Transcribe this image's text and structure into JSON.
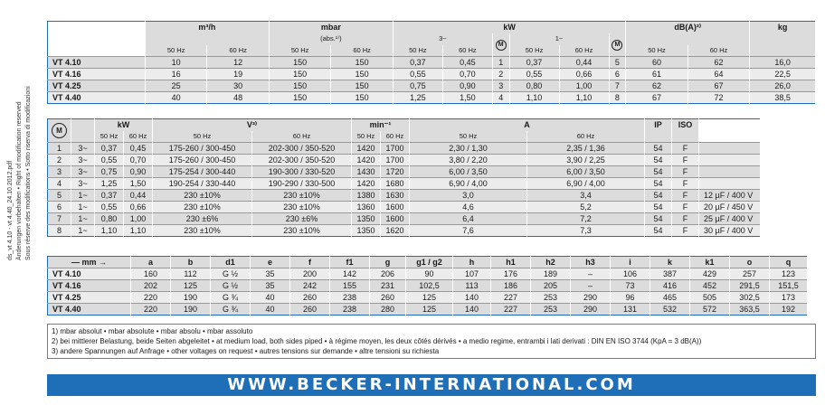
{
  "side_text": {
    "line1": "ds_vt 4.10 - vt 4.40_24.10.2012.pdf",
    "line2": "Änderungen vorbehalten • Right of modification reserved",
    "line3": "Sous réserve des modifications • Sotto riserva di modificazioni"
  },
  "t1": {
    "headers": [
      "m³/h",
      "mbar",
      "(abs.¹⁾)",
      "kW",
      "3~",
      "1~",
      "M",
      "dB(A)²⁾",
      "kg"
    ],
    "freq": [
      "50 Hz",
      "60 Hz"
    ],
    "rows": [
      [
        "VT 4.10",
        "10",
        "12",
        "150",
        "150",
        "0,37",
        "0,45",
        "1",
        "0,37",
        "0,44",
        "5",
        "60",
        "62",
        "16,0"
      ],
      [
        "VT 4.16",
        "16",
        "19",
        "150",
        "150",
        "0,55",
        "0,70",
        "2",
        "0,55",
        "0,66",
        "6",
        "61",
        "64",
        "22,5"
      ],
      [
        "VT 4.25",
        "25",
        "30",
        "150",
        "150",
        "0,75",
        "0,90",
        "3",
        "0,80",
        "1,00",
        "7",
        "62",
        "67",
        "26,0"
      ],
      [
        "VT 4.40",
        "40",
        "48",
        "150",
        "150",
        "1,25",
        "1,50",
        "4",
        "1,10",
        "1,10",
        "8",
        "67",
        "72",
        "38,5"
      ]
    ]
  },
  "t2": {
    "headers": [
      "M",
      "kW",
      "V³⁾",
      "min⁻¹",
      "A",
      "IP",
      "ISO"
    ],
    "freq": [
      "50 Hz",
      "60 Hz"
    ],
    "rows": [
      [
        "1",
        "3~",
        "0,37",
        "0,45",
        "175-260 / 300-450",
        "202-300 / 350-520",
        "1420",
        "1700",
        "2,30 / 1,30",
        "2,35 / 1,36",
        "54",
        "F",
        ""
      ],
      [
        "2",
        "3~",
        "0,55",
        "0,70",
        "175-260 / 300-450",
        "202-300 / 350-520",
        "1420",
        "1700",
        "3,80 / 2,20",
        "3,90 / 2,25",
        "54",
        "F",
        ""
      ],
      [
        "3",
        "3~",
        "0,75",
        "0,90",
        "175-254 / 300-440",
        "190-300 / 330-520",
        "1430",
        "1720",
        "6,00 / 3,50",
        "6,00 / 3,50",
        "54",
        "F",
        ""
      ],
      [
        "4",
        "3~",
        "1,25",
        "1,50",
        "190-254 / 330-440",
        "190-290 / 330-500",
        "1420",
        "1680",
        "6,90 / 4,00",
        "6,90 / 4,00",
        "54",
        "F",
        ""
      ],
      [
        "5",
        "1~",
        "0,37",
        "0,44",
        "230 ±10%",
        "230 ±10%",
        "1380",
        "1630",
        "3,0",
        "3,4",
        "54",
        "F",
        "12 µF / 400 V"
      ],
      [
        "6",
        "1~",
        "0,55",
        "0,66",
        "230 ±10%",
        "230 ±10%",
        "1360",
        "1600",
        "4,6",
        "5,2",
        "54",
        "F",
        "20 µF / 450 V"
      ],
      [
        "7",
        "1~",
        "0,80",
        "1,00",
        "230 ±6%",
        "230 ±6%",
        "1350",
        "1600",
        "6,4",
        "7,2",
        "54",
        "F",
        "25 µF / 400 V"
      ],
      [
        "8",
        "1~",
        "1,10",
        "1,10",
        "230 ±10%",
        "230 ±10%",
        "1350",
        "1620",
        "7,6",
        "7,3",
        "54",
        "F",
        "30 µF / 400 V"
      ]
    ]
  },
  "t3": {
    "headers": [
      "— mm →",
      "a",
      "b",
      "d1",
      "e",
      "f",
      "f1",
      "g",
      "g1 / g2",
      "h",
      "h1",
      "h2",
      "h3",
      "i",
      "k",
      "k1",
      "o",
      "q"
    ],
    "rows": [
      [
        "VT 4.10",
        "160",
        "112",
        "G ½",
        "35",
        "200",
        "142",
        "206",
        "90",
        "107",
        "176",
        "189",
        "–",
        "106",
        "387",
        "429",
        "257",
        "123"
      ],
      [
        "VT 4.16",
        "202",
        "125",
        "G ½",
        "35",
        "242",
        "155",
        "231",
        "102,5",
        "113",
        "186",
        "205",
        "–",
        "73",
        "416",
        "452",
        "291,5",
        "151,5"
      ],
      [
        "VT 4.25",
        "220",
        "190",
        "G ¾",
        "40",
        "260",
        "238",
        "260",
        "125",
        "140",
        "227",
        "253",
        "290",
        "96",
        "465",
        "505",
        "302,5",
        "173"
      ],
      [
        "VT 4.40",
        "220",
        "190",
        "G ¾",
        "40",
        "260",
        "238",
        "280",
        "125",
        "140",
        "227",
        "253",
        "290",
        "131",
        "532",
        "572",
        "363,5",
        "192"
      ]
    ]
  },
  "notes": [
    "1) mbar absolut • mbar absolute • mbar absolu • mbar assoluto",
    "2) bei mittlerer Belastung, beide Seiten abgeleitet • at medium load, both sides piped • à régime moyen, les deux côtés dérivés • a medio regime, entrambi i lati derivati :  DIN EN ISO 3744 (KpA = 3 dB(A))",
    "3) andere Spannungen auf Anfrage • other voltages on request • autres tensions sur demande • altre tensioni su richiesta"
  ],
  "banner": "WWW.BECKER-INTERNATIONAL.COM",
  "colors": {
    "accent": "#1f6fb8",
    "row_shade": "#dcdcdc"
  }
}
